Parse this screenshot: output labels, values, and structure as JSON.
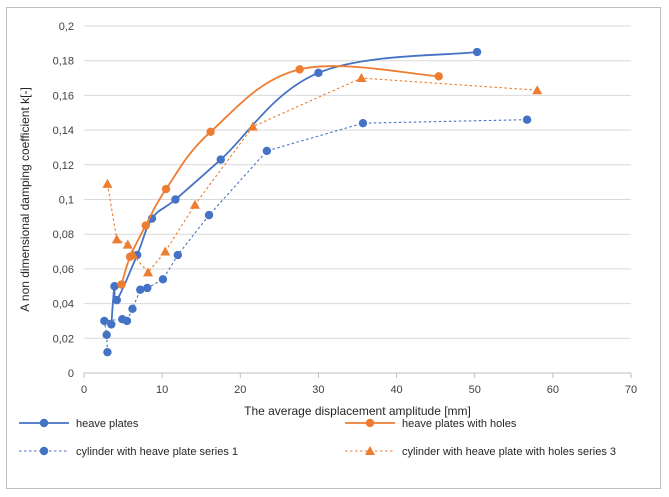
{
  "chart_data": {
    "type": "scatter",
    "title": "",
    "xlabel": "The average displacement amplitude [mm]",
    "ylabel": "A non dimensional damping coefficient  k[-]",
    "xlim": [
      0,
      70
    ],
    "ylim": [
      0,
      0.2
    ],
    "x_ticks": [
      0,
      10,
      20,
      30,
      40,
      50,
      60,
      70
    ],
    "x_tick_labels": [
      "0",
      "10",
      "20",
      "30",
      "40",
      "50",
      "60",
      "70"
    ],
    "y_ticks": [
      0,
      0.02,
      0.04,
      0.06,
      0.08,
      0.1,
      0.12,
      0.14,
      0.16,
      0.18,
      0.2
    ],
    "y_tick_labels": [
      "0",
      "0,02",
      "0,04",
      "0,06",
      "0,08",
      "0,1",
      "0,12",
      "0,14",
      "0,16",
      "0,18",
      "0,2"
    ],
    "grid": "horizontal",
    "legend_position": "bottom",
    "series": [
      {
        "name": "heave plates",
        "color": "#4472C4",
        "line": "solid-smooth",
        "marker": "circle",
        "points": [
          [
            3.5,
            0.028
          ],
          [
            3.9,
            0.05
          ],
          [
            4.2,
            0.042
          ],
          [
            6.8,
            0.068
          ],
          [
            8.7,
            0.089
          ],
          [
            11.7,
            0.1
          ],
          [
            17.5,
            0.123
          ],
          [
            30.0,
            0.173
          ],
          [
            50.3,
            0.185
          ]
        ]
      },
      {
        "name": "heave plates with holes",
        "color": "#ED7D31",
        "line": "solid-smooth",
        "marker": "circle",
        "points": [
          [
            4.8,
            0.051
          ],
          [
            5.9,
            0.067
          ],
          [
            7.9,
            0.085
          ],
          [
            10.5,
            0.106
          ],
          [
            16.2,
            0.139
          ],
          [
            27.6,
            0.175
          ],
          [
            45.4,
            0.171
          ]
        ]
      },
      {
        "name": "cylinder with heave plate series 1",
        "color": "#4472C4",
        "line": "dotted",
        "marker": "circle",
        "points": [
          [
            3.0,
            0.012
          ],
          [
            2.9,
            0.022
          ],
          [
            2.6,
            0.03
          ],
          [
            4.9,
            0.031
          ],
          [
            5.5,
            0.03
          ],
          [
            6.2,
            0.037
          ],
          [
            7.2,
            0.048
          ],
          [
            8.1,
            0.049
          ],
          [
            10.1,
            0.054
          ],
          [
            12.0,
            0.068
          ],
          [
            16.0,
            0.091
          ],
          [
            23.4,
            0.128
          ],
          [
            35.7,
            0.144
          ],
          [
            56.7,
            0.146
          ]
        ]
      },
      {
        "name": "cylinder with heave plate with holes series 3",
        "color": "#ED7D31",
        "line": "dotted",
        "marker": "triangle",
        "points": [
          [
            3.0,
            0.109
          ],
          [
            4.2,
            0.077
          ],
          [
            5.6,
            0.074
          ],
          [
            6.3,
            0.068
          ],
          [
            8.2,
            0.058
          ],
          [
            10.4,
            0.07
          ],
          [
            14.2,
            0.097
          ],
          [
            21.6,
            0.142
          ],
          [
            35.5,
            0.17
          ],
          [
            58.0,
            0.163
          ]
        ]
      }
    ]
  }
}
